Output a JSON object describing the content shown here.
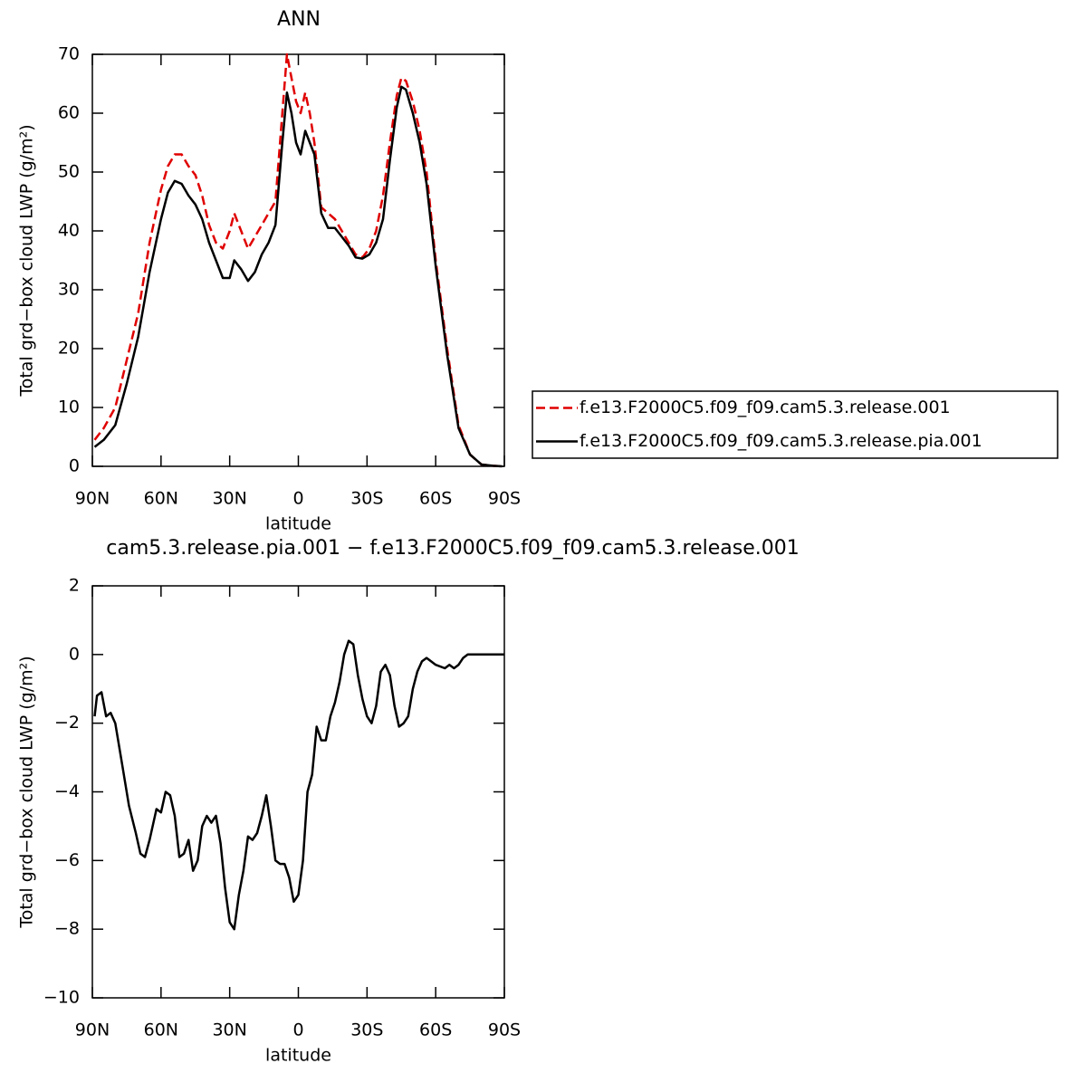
{
  "chart_data": [
    {
      "type": "line",
      "title": "ANN",
      "xlabel": "latitude",
      "ylabel": "Total grd−box cloud LWP (g/m²)",
      "xlim": [
        90,
        -90
      ],
      "ylim": [
        0,
        70
      ],
      "xticks": [
        {
          "value": 90,
          "label": "90N"
        },
        {
          "value": 60,
          "label": "60N"
        },
        {
          "value": 30,
          "label": "30N"
        },
        0,
        {
          "value": -30,
          "label": "30S"
        },
        {
          "value": -60,
          "label": "60S"
        },
        {
          "value": -90,
          "label": "90S"
        }
      ],
      "yticks": [
        0,
        10,
        20,
        30,
        40,
        50,
        60,
        70
      ],
      "legend": "right",
      "x": [
        89,
        85,
        80,
        75,
        70,
        65,
        60,
        57,
        54,
        51,
        48,
        45,
        42,
        39,
        36,
        33,
        30,
        28,
        25,
        22,
        19,
        16,
        13,
        10,
        7,
        5,
        3,
        1,
        -1,
        -3,
        -5,
        -7,
        -10,
        -13,
        -16,
        -19,
        -22,
        -25,
        -28,
        -31,
        -34,
        -37,
        -40,
        -43,
        -45,
        -47,
        -50,
        -53,
        -56,
        -60,
        -65,
        -70,
        -75,
        -80,
        -85,
        -89
      ],
      "series": [
        {
          "name": "f.e13.F2000C5.f09_f09.cam5.3.release.001",
          "color": "#e00000",
          "dash": true,
          "values": [
            4.5,
            6.5,
            10,
            18,
            26,
            38,
            47,
            51,
            53,
            53,
            51,
            49.5,
            46,
            41,
            38,
            37,
            40,
            43,
            40,
            37,
            39,
            41,
            43,
            45,
            60,
            70,
            66,
            62,
            60,
            63.5,
            60,
            55,
            44,
            43,
            42,
            40,
            38,
            36,
            35.5,
            37,
            40,
            46,
            55,
            63,
            66,
            65.5,
            62,
            57,
            50,
            35,
            20,
            7,
            2,
            0.3,
            0.1,
            0
          ]
        },
        {
          "name": "f.e13.F2000C5.f09_f09.cam5.3.release.pia.001",
          "color": "#000000",
          "dash": false,
          "values": [
            3.3,
            4.5,
            7,
            14,
            22,
            33,
            42,
            46.5,
            48.5,
            48,
            46,
            44.5,
            42,
            38,
            35,
            32,
            32,
            35,
            33.5,
            31.5,
            33,
            36,
            38,
            41,
            55,
            63.5,
            60,
            55,
            53,
            57,
            55,
            53,
            43,
            40.5,
            40.5,
            39,
            37.5,
            35.5,
            35.3,
            36,
            38,
            42,
            52,
            61,
            64.5,
            64,
            60,
            55,
            48,
            34,
            19,
            6.5,
            2,
            0.3,
            0.1,
            0
          ]
        }
      ]
    },
    {
      "type": "line",
      "title": "cam5.3.release.pia.001 − f.e13.F2000C5.f09_f09.cam5.3.release.001",
      "xlabel": "latitude",
      "ylabel": "Total grd−box cloud LWP (g/m²)",
      "xlim": [
        90,
        -90
      ],
      "ylim": [
        -10,
        2
      ],
      "xticks": [
        {
          "value": 90,
          "label": "90N"
        },
        {
          "value": 60,
          "label": "60N"
        },
        {
          "value": 30,
          "label": "30N"
        },
        0,
        {
          "value": -30,
          "label": "30S"
        },
        {
          "value": -60,
          "label": "60S"
        },
        {
          "value": -90,
          "label": "90S"
        }
      ],
      "yticks": [
        {
          "value": -10,
          "label": "−10"
        },
        {
          "value": -8,
          "label": "−8"
        },
        {
          "value": -6,
          "label": "−6"
        },
        {
          "value": -4,
          "label": "−4"
        },
        {
          "value": -2,
          "label": "−2"
        },
        0,
        2
      ],
      "x": [
        89,
        88,
        86,
        84,
        82,
        80,
        77,
        74,
        71,
        69,
        67,
        65,
        62,
        60,
        58,
        56,
        54,
        52,
        50,
        48,
        46,
        44,
        42,
        40,
        38,
        36,
        34,
        32,
        30,
        28,
        26,
        24,
        22,
        20,
        18,
        16,
        14,
        12,
        10,
        8,
        6,
        4,
        2,
        0,
        -2,
        -4,
        -6,
        -8,
        -10,
        -12,
        -14,
        -16,
        -18,
        -20,
        -22,
        -24,
        -26,
        -28,
        -30,
        -32,
        -34,
        -36,
        -38,
        -40,
        -42,
        -44,
        -46,
        -48,
        -50,
        -52,
        -54,
        -56,
        -58,
        -60,
        -64,
        -66,
        -68,
        -70,
        -72,
        -74,
        -78,
        -82,
        -86,
        -90
      ],
      "series": [
        {
          "color": "#000000",
          "dash": false,
          "values": [
            -1.8,
            -1.2,
            -1.1,
            -1.8,
            -1.7,
            -2,
            -3.2,
            -4.4,
            -5.2,
            -5.8,
            -5.9,
            -5.4,
            -4.5,
            -4.6,
            -4,
            -4.1,
            -4.7,
            -5.9,
            -5.8,
            -5.4,
            -6.3,
            -6,
            -5,
            -4.7,
            -4.9,
            -4.7,
            -5.5,
            -6.8,
            -7.8,
            -8,
            -7,
            -6.3,
            -5.3,
            -5.4,
            -5.2,
            -4.7,
            -4.1,
            -5,
            -6,
            -6.1,
            -6.1,
            -6.5,
            -7.2,
            -7,
            -6,
            -4,
            -3.5,
            -2.1,
            -2.5,
            -2.5,
            -1.8,
            -1.4,
            -0.8,
            0,
            0.4,
            0.3,
            -0.6,
            -1.3,
            -1.8,
            -2,
            -1.5,
            -0.5,
            -0.3,
            -0.6,
            -1.5,
            -2.1,
            -2,
            -1.8,
            -1,
            -0.5,
            -0.2,
            -0.1,
            -0.2,
            -0.3,
            -0.4,
            -0.3,
            -0.4,
            -0.3,
            -0.1,
            0,
            0,
            0,
            0,
            0
          ]
        }
      ]
    }
  ]
}
